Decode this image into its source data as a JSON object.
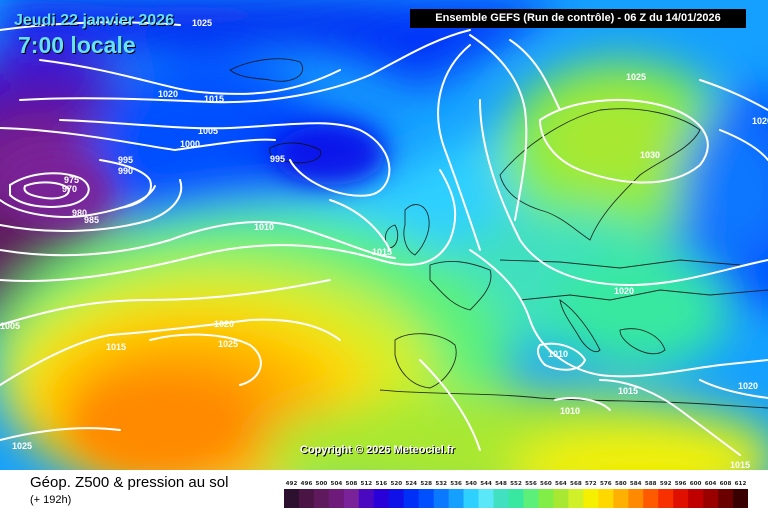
{
  "header": {
    "date": "Jeudi 22 janvier 2026",
    "time": "7:00 locale",
    "run": "Ensemble GEFS  (Run de contrôle)  -  06 Z du 14/01/2026"
  },
  "copyright": "Copyright © 2026 Meteociel.fr",
  "footer": {
    "title": "Géop. Z500 & pression au sol",
    "subtitle": "(+ 192h)"
  },
  "legend": {
    "values": [
      "492",
      "496",
      "500",
      "504",
      "508",
      "512",
      "516",
      "520",
      "524",
      "528",
      "532",
      "536",
      "540",
      "544",
      "548",
      "552",
      "556",
      "560",
      "564",
      "568",
      "572",
      "576",
      "580",
      "584",
      "588",
      "592",
      "596",
      "600",
      "604",
      "608",
      "612"
    ],
    "colors": [
      "#2d0f2f",
      "#4a1445",
      "#5e1a5c",
      "#6e1a7a",
      "#7a229a",
      "#4a08c0",
      "#2a00d8",
      "#1010e8",
      "#0030f8",
      "#0050ff",
      "#0a78ff",
      "#15a0ff",
      "#2ed0ff",
      "#5ae8f8",
      "#40e0c0",
      "#38e8a0",
      "#5cf07a",
      "#80ee46",
      "#a8e832",
      "#d0f02a",
      "#f4f000",
      "#ffd800",
      "#ffb000",
      "#ff8a00",
      "#ff5a00",
      "#f83000",
      "#e01000",
      "#c00000",
      "#9a0000",
      "#6a0000",
      "#380000"
    ]
  },
  "isobars": [
    {
      "v": "1025"
    },
    {
      "v": "1020"
    },
    {
      "v": "1015"
    },
    {
      "v": "1005"
    },
    {
      "v": "1000"
    },
    {
      "v": "995"
    },
    {
      "v": "990"
    },
    {
      "v": "975"
    },
    {
      "v": "970"
    },
    {
      "v": "980"
    },
    {
      "v": "985"
    },
    {
      "v": "995"
    },
    {
      "v": "1010"
    },
    {
      "v": "1015"
    },
    {
      "v": "1025"
    },
    {
      "v": "1030"
    },
    {
      "v": "1020"
    },
    {
      "v": "1020"
    },
    {
      "v": "1025"
    },
    {
      "v": "1015"
    },
    {
      "v": "1005"
    },
    {
      "v": "1010"
    },
    {
      "v": "1010"
    },
    {
      "v": "1015"
    },
    {
      "v": "1020"
    },
    {
      "v": "1025"
    },
    {
      "v": "1015"
    },
    {
      "v": "1020"
    }
  ]
}
